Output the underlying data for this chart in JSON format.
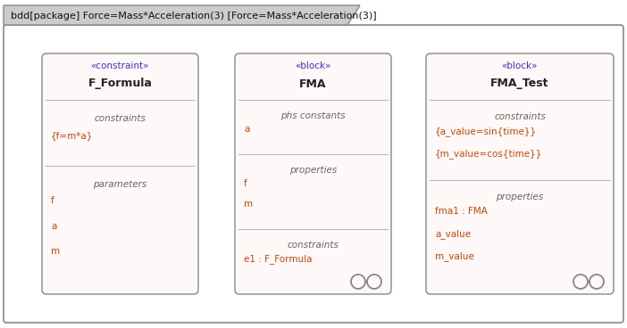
{
  "title": "bdd[package] Force=Mass*Acceleration(3) [Force=Mass*Acceleration(3)]",
  "diagram_bg": "#ffffff",
  "box_bg": "#fff8f8",
  "box_border": "#888888",
  "header_stereotype_color": "#3333cc",
  "header_name_color": "#222222",
  "section_label_color": "#666666",
  "item_color": "#cc4400",
  "divider_color": "#bbbbbb",
  "title_bg": "#cccccc",
  "title_border": "#888888",
  "outer_border": "#888888",
  "boxes": [
    {
      "label": "F_Formula",
      "stereotype": "«constraint»",
      "name": "F_Formula",
      "sections": [
        {
          "label": "constraints",
          "items": [
            "{f=m*a}"
          ]
        },
        {
          "label": "parameters",
          "items": [
            "f",
            "a",
            "m"
          ]
        }
      ],
      "has_glasses": false
    },
    {
      "label": "FMA",
      "stereotype": "«block»",
      "name": "FMA",
      "sections": [
        {
          "label": "phs constants",
          "items": [
            "a"
          ]
        },
        {
          "label": "properties",
          "items": [
            "f",
            "m"
          ]
        },
        {
          "label": "constraints",
          "items": [
            "e1 : F_Formula"
          ]
        }
      ],
      "has_glasses": true
    },
    {
      "label": "FMA_Test",
      "stereotype": "«block»",
      "name": "FMA_Test",
      "sections": [
        {
          "label": "constraints",
          "items": [
            "{a_value=sin{time}}",
            "{m_value=cos{time}}"
          ]
        },
        {
          "label": "properties",
          "items": [
            "fma1 : FMA",
            "a_value",
            "m_value"
          ]
        }
      ],
      "has_glasses": true
    }
  ]
}
